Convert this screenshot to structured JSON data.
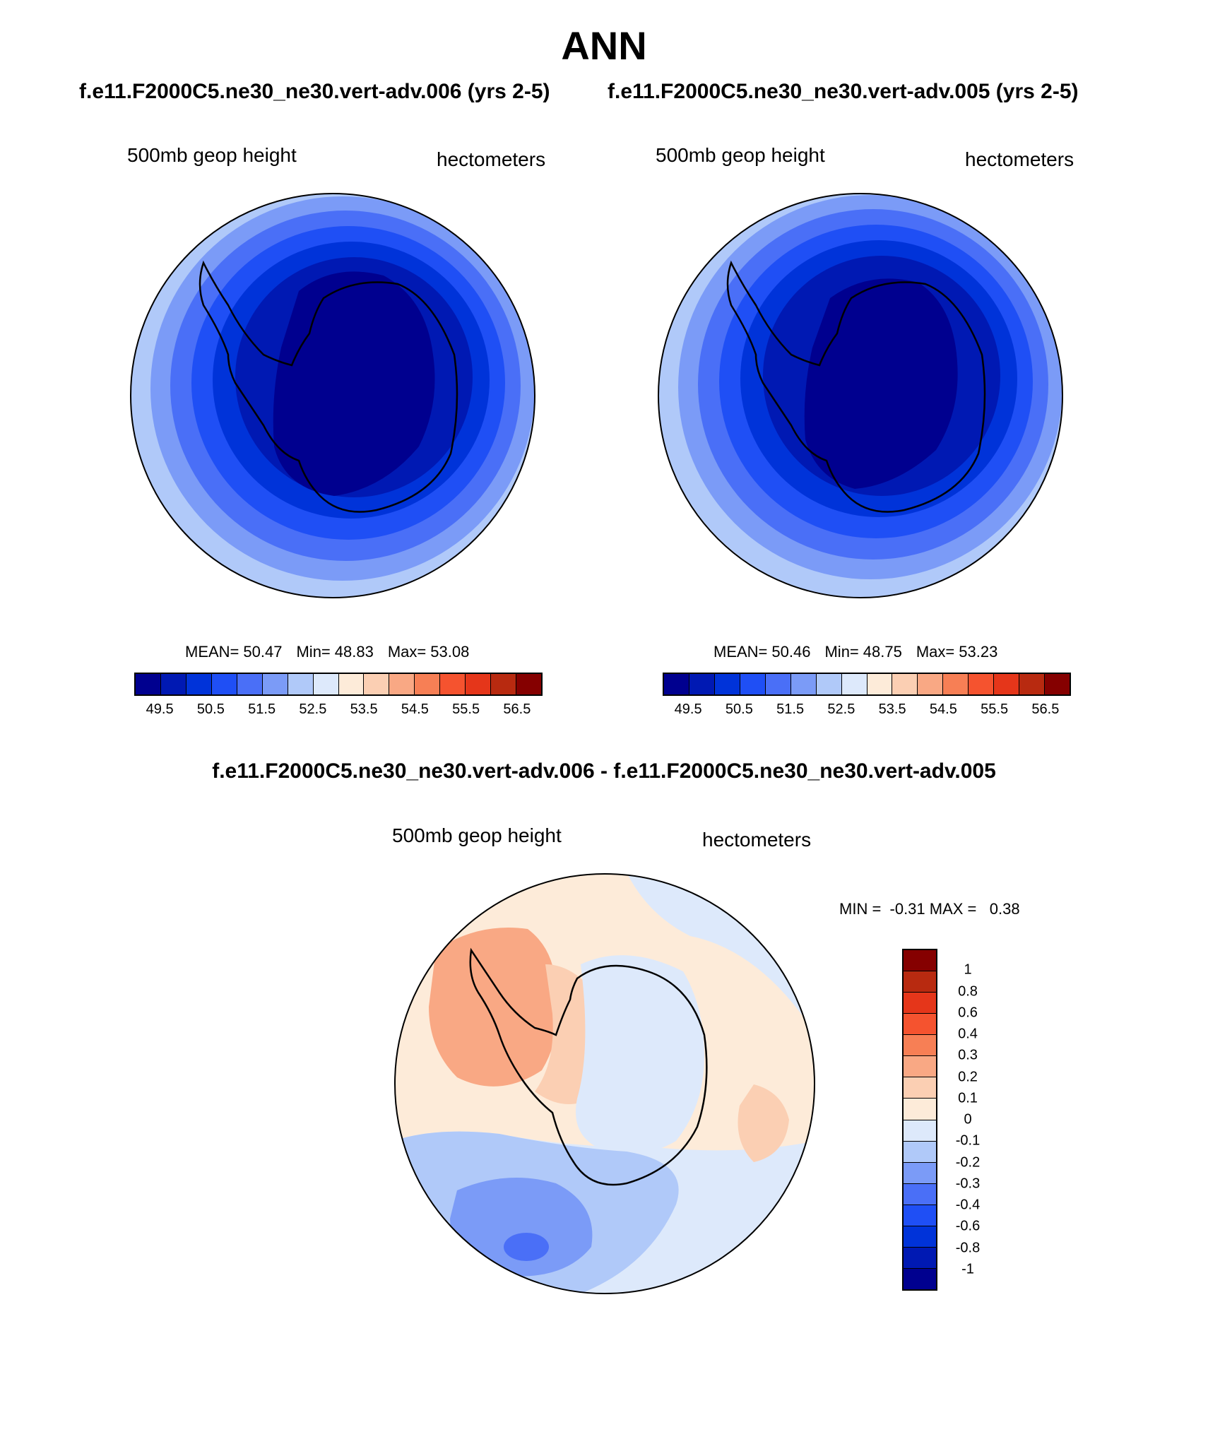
{
  "title": "ANN",
  "top_panels": [
    {
      "case": "f.e11.F2000C5.ne30_ne30.vert-adv.006 (yrs 2-5)",
      "left_label": "500mb geop height",
      "right_label": "hectometers",
      "stats": {
        "mean_label": "MEAN=",
        "mean": "50.47",
        "min_label": "Min=",
        "min": "48.83",
        "max_label": "Max=",
        "max": "53.08"
      }
    },
    {
      "case": "f.e11.F2000C5.ne30_ne30.vert-adv.005 (yrs 2-5)",
      "left_label": "500mb geop height",
      "right_label": "hectometers",
      "stats": {
        "mean_label": "MEAN=",
        "mean": "50.46",
        "min_label": "Min=",
        "min": "48.75",
        "max_label": "Max=",
        "max": "53.23"
      }
    }
  ],
  "colorbar_top": {
    "colors": [
      "#00008f",
      "#0019b3",
      "#0033d9",
      "#1f4ff5",
      "#4a6ff7",
      "#7b9bf7",
      "#b0c9f9",
      "#dde9fb",
      "#fdebd9",
      "#fbcfb3",
      "#f9a884",
      "#f77f55",
      "#f5532f",
      "#e5361a",
      "#b82a10",
      "#850000"
    ],
    "ticks": [
      "49.5",
      "50.5",
      "51.5",
      "52.5",
      "53.5",
      "54.5",
      "55.5",
      "56.5"
    ]
  },
  "diff_panel": {
    "title": "f.e11.F2000C5.ne30_ne30.vert-adv.006 - f.e11.F2000C5.ne30_ne30.vert-adv.005",
    "left_label": "500mb geop height",
    "right_label": "hectometers",
    "minmax": "MIN =  -0.31 MAX =   0.38"
  },
  "colorbar_diff": {
    "colors": [
      "#850000",
      "#b82a10",
      "#e5361a",
      "#f5532f",
      "#f77f55",
      "#f9a884",
      "#fbcfb3",
      "#fdebd9",
      "#dde9fb",
      "#b0c9f9",
      "#7b9bf7",
      "#4a6ff7",
      "#1f4ff5",
      "#0033d9",
      "#0019b3",
      "#00008f"
    ],
    "ticks": [
      "1",
      "0.8",
      "0.6",
      "0.4",
      "0.3",
      "0.2",
      "0.1",
      "0",
      "-0.1",
      "-0.2",
      "-0.3",
      "-0.4",
      "-0.6",
      "-0.8",
      "-1"
    ]
  }
}
